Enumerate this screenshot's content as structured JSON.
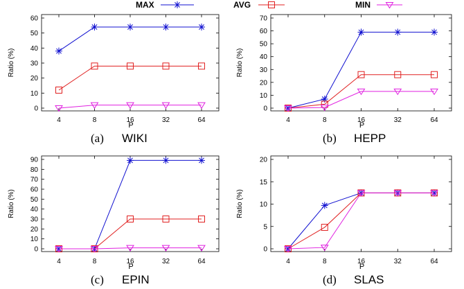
{
  "legend": [
    {
      "name": "MAX",
      "color": "#1010d0",
      "marker": "asterisk"
    },
    {
      "name": "AVG",
      "color": "#e02020",
      "marker": "square"
    },
    {
      "name": "MIN",
      "color": "#e020e0",
      "marker": "triangle-down"
    }
  ],
  "chart_data": [
    {
      "type": "line",
      "caption": "(a)",
      "caption_name": "WIKI",
      "xlabel": "P",
      "ylabel": "Ratio (%)",
      "categories": [
        "4",
        "8",
        "16",
        "32",
        "64"
      ],
      "ylim": [
        0,
        60
      ],
      "yticks": [
        0,
        10,
        20,
        30,
        40,
        50,
        60
      ],
      "grid": false,
      "series": [
        {
          "name": "MAX",
          "values": [
            38,
            54,
            54,
            54,
            54
          ]
        },
        {
          "name": "AVG",
          "values": [
            12,
            28,
            28,
            28,
            28
          ]
        },
        {
          "name": "MIN",
          "values": [
            0,
            2,
            2,
            2,
            2
          ]
        }
      ]
    },
    {
      "type": "line",
      "caption": "(b)",
      "caption_name": "HEPP",
      "xlabel": "P",
      "ylabel": "Ratio (%)",
      "categories": [
        "4",
        "8",
        "16",
        "32",
        "64"
      ],
      "ylim": [
        0,
        70
      ],
      "yticks": [
        0,
        10,
        20,
        30,
        40,
        50,
        60,
        70
      ],
      "grid": false,
      "series": [
        {
          "name": "MAX",
          "values": [
            0,
            7,
            59,
            59,
            59
          ]
        },
        {
          "name": "AVG",
          "values": [
            0,
            3,
            26,
            26,
            26
          ]
        },
        {
          "name": "MIN",
          "values": [
            0,
            0.5,
            13,
            13,
            13
          ]
        }
      ]
    },
    {
      "type": "line",
      "caption": "(c)",
      "caption_name": "EPIN",
      "xlabel": "P",
      "ylabel": "Ratio (%)",
      "categories": [
        "4",
        "8",
        "16",
        "32",
        "64"
      ],
      "ylim": [
        0,
        90
      ],
      "yticks": [
        0,
        10,
        20,
        30,
        40,
        50,
        60,
        70,
        80,
        90
      ],
      "grid": false,
      "series": [
        {
          "name": "MAX",
          "values": [
            0,
            0,
            89,
            89,
            89
          ]
        },
        {
          "name": "AVG",
          "values": [
            0,
            0,
            30,
            30,
            30
          ]
        },
        {
          "name": "MIN",
          "values": [
            0,
            0,
            1,
            1,
            1
          ]
        }
      ]
    },
    {
      "type": "line",
      "caption": "(d)",
      "caption_name": "SLAS",
      "xlabel": "P",
      "ylabel": "Ratio (%)",
      "categories": [
        "4",
        "8",
        "16",
        "32",
        "64"
      ],
      "ylim": [
        0,
        20
      ],
      "yticks": [
        0,
        5,
        10,
        15,
        20
      ],
      "grid": false,
      "series": [
        {
          "name": "MAX",
          "values": [
            0,
            9.7,
            12.5,
            12.5,
            12.5
          ]
        },
        {
          "name": "AVG",
          "values": [
            0,
            4.8,
            12.5,
            12.5,
            12.5
          ]
        },
        {
          "name": "MIN",
          "values": [
            0,
            0.3,
            12.5,
            12.5,
            12.5
          ]
        }
      ]
    }
  ]
}
